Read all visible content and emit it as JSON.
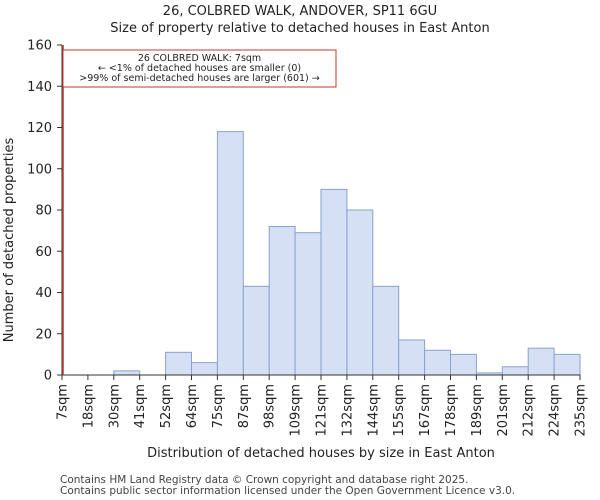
{
  "chart_data": {
    "type": "bar",
    "title_line1": "26, COLBRED WALK, ANDOVER, SP11 6GU",
    "title_line2": "Size of property relative to detached houses in East Anton",
    "xlabel": "Distribution of detached houses by size in East Anton",
    "ylabel": "Number of detached properties",
    "ylim": [
      0,
      160
    ],
    "yticks": [
      0,
      20,
      40,
      60,
      80,
      100,
      120,
      140,
      160
    ],
    "tick_labels": [
      "7sqm",
      "18sqm",
      "30sqm",
      "41sqm",
      "52sqm",
      "64sqm",
      "75sqm",
      "87sqm",
      "98sqm",
      "109sqm",
      "121sqm",
      "132sqm",
      "144sqm",
      "155sqm",
      "167sqm",
      "178sqm",
      "189sqm",
      "201sqm",
      "212sqm",
      "224sqm",
      "235sqm"
    ],
    "values": [
      0,
      0,
      2,
      0,
      11,
      6,
      118,
      43,
      72,
      69,
      90,
      80,
      43,
      17,
      12,
      10,
      1,
      4,
      13,
      10
    ],
    "bar_color": "#d6e0f5",
    "bar_edge_color": "#8aa0d0",
    "marker_color": "#c0392b",
    "annotation": {
      "line1": "26 COLBRED WALK: 7sqm",
      "line2": "← <1% of detached houses are smaller (0)",
      "line3": ">99% of semi-detached houses are larger (601) →"
    }
  },
  "footer": {
    "line1": "Contains HM Land Registry data © Crown copyright and database right 2025.",
    "line2": "Contains public sector information licensed under the Open Government Licence v3.0."
  }
}
